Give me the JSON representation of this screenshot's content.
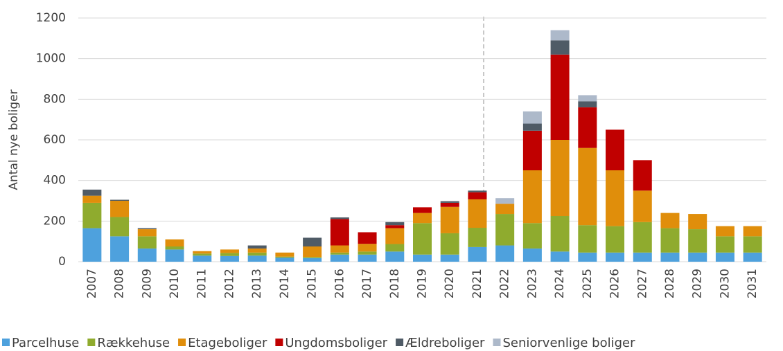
{
  "chart_data": {
    "type": "stacked-bar",
    "y_label": "Antal nye boliger",
    "categories": [
      "2007",
      "2008",
      "2009",
      "2010",
      "2011",
      "2012",
      "2013",
      "2014",
      "2015",
      "2016",
      "2017",
      "2018",
      "2019",
      "2020",
      "2021",
      "2022",
      "2023",
      "2024",
      "2025",
      "2026",
      "2027",
      "2028",
      "2029",
      "2030",
      "2031"
    ],
    "series": [
      {
        "name": "Parcelhuse",
        "color": "#4ea1dd",
        "values": [
          165,
          125,
          65,
          60,
          30,
          28,
          30,
          20,
          18,
          35,
          35,
          50,
          35,
          35,
          72,
          80,
          65,
          50,
          45,
          45,
          45,
          45,
          45,
          45,
          45
        ]
      },
      {
        "name": "Rækkehuse",
        "color": "#8fab2e",
        "values": [
          125,
          95,
          60,
          15,
          10,
          15,
          15,
          5,
          5,
          10,
          15,
          37,
          155,
          105,
          95,
          155,
          125,
          175,
          135,
          130,
          150,
          120,
          115,
          80,
          80
        ]
      },
      {
        "name": "Etageboliger",
        "color": "#e08e0b",
        "values": [
          35,
          80,
          35,
          35,
          12,
          17,
          20,
          20,
          52,
          35,
          38,
          78,
          50,
          130,
          140,
          50,
          260,
          375,
          380,
          275,
          155,
          75,
          75,
          50,
          50
        ]
      },
      {
        "name": "Ungdomsboliger",
        "color": "#c00000",
        "values": [
          0,
          0,
          0,
          0,
          0,
          0,
          0,
          0,
          0,
          130,
          57,
          15,
          28,
          20,
          35,
          0,
          195,
          420,
          200,
          200,
          150,
          0,
          0,
          0,
          0
        ]
      },
      {
        "name": "Ældreboliger",
        "color": "#4f5b66",
        "values": [
          30,
          5,
          5,
          0,
          0,
          0,
          15,
          0,
          43,
          8,
          0,
          15,
          0,
          8,
          8,
          0,
          35,
          70,
          30,
          0,
          0,
          0,
          0,
          0,
          0
        ]
      },
      {
        "name": "Seniorvenlige boliger",
        "color": "#adb9ca",
        "values": [
          0,
          0,
          0,
          0,
          0,
          0,
          0,
          0,
          0,
          0,
          0,
          0,
          0,
          0,
          0,
          28,
          60,
          50,
          30,
          0,
          0,
          0,
          0,
          0,
          0
        ]
      }
    ],
    "ylim": [
      0,
      1200
    ],
    "yticks": [
      0,
      200,
      400,
      600,
      800,
      1000,
      1200
    ],
    "grid": true
  }
}
